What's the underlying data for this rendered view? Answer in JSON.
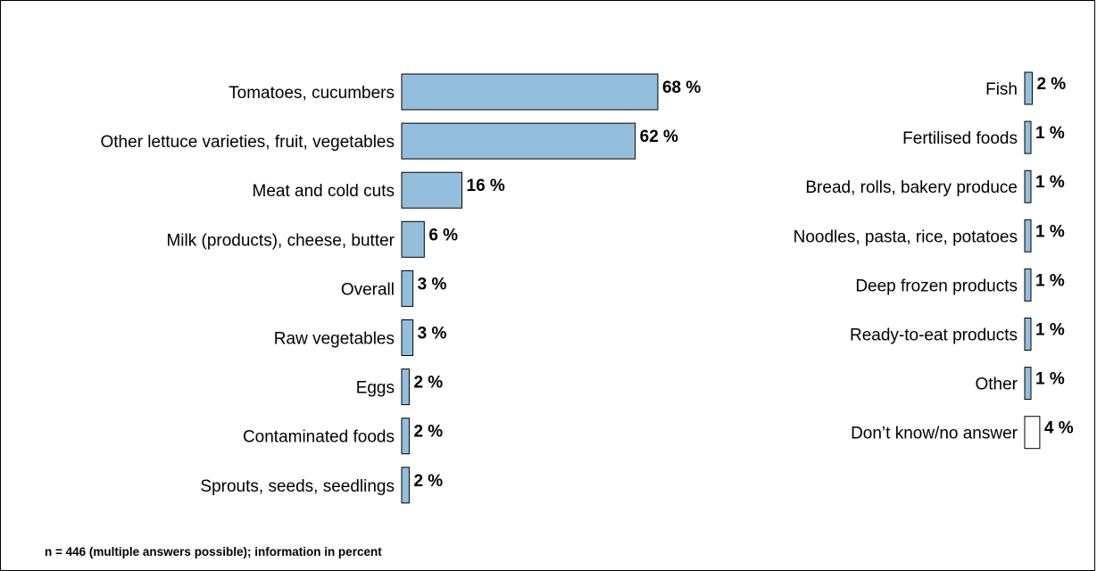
{
  "footnote": "n = 446 (multiple answers possible); information in percent",
  "colors": {
    "bar": "#93bfdc",
    "bar_unknown": "#ffffff",
    "stroke": "#000000"
  },
  "chart_data": [
    {
      "type": "bar",
      "orientation": "horizontal",
      "unit": "%",
      "xlim": [
        0,
        100
      ],
      "categories": [
        "Tomatoes, cucumbers",
        "Other lettuce varieties, fruit, vegetables",
        "Meat and cold cuts",
        "Milk (products), cheese, butter",
        "Overall",
        "Raw vegetables",
        "Eggs",
        "Contaminated foods",
        "Sprouts, seeds, seedlings"
      ],
      "values": [
        68,
        62,
        16,
        6,
        3,
        3,
        2,
        2,
        2
      ],
      "value_labels": [
        "68 %",
        "62 %",
        "16 %",
        "6 %",
        "3 %",
        "3 %",
        "2 %",
        "2 %",
        "2 %"
      ]
    },
    {
      "type": "bar",
      "orientation": "horizontal",
      "unit": "%",
      "xlim": [
        0,
        100
      ],
      "categories": [
        "Fish",
        "Fertilised foods",
        "Bread, rolls, bakery produce",
        "Noodles, pasta, rice, potatoes",
        "Deep frozen products",
        "Ready-to-eat products",
        "Other",
        "Don’t know/no answer"
      ],
      "values": [
        2,
        1,
        1,
        1,
        1,
        1,
        1,
        4
      ],
      "value_labels": [
        "2 %",
        "1 %",
        "1 %",
        "1 %",
        "1 %",
        "1 %",
        "1 %",
        "4 %"
      ],
      "unfilled_categories": [
        "Don’t know/no answer"
      ]
    }
  ]
}
